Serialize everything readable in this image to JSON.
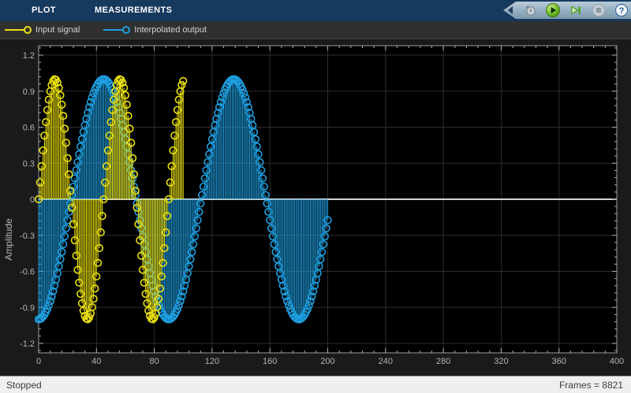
{
  "tabs": [
    {
      "label": "PLOT"
    },
    {
      "label": "MEASUREMENTS"
    }
  ],
  "toolbar": {
    "buttons": [
      "stepping-options",
      "run",
      "step-forward",
      "stop",
      "help"
    ]
  },
  "legend": [
    {
      "label": "Input signal",
      "color": "#ebe10f"
    },
    {
      "label": "Interpolated output",
      "color": "#1e9fe0"
    }
  ],
  "status_bar": {
    "left": "Stopped",
    "right": "Frames = 8821"
  },
  "chart_data": {
    "type": "stem",
    "title": "",
    "xlabel": "",
    "ylabel": "Amplitude",
    "xlim": [
      0,
      400
    ],
    "ylim": [
      -1.28,
      1.28
    ],
    "x_ticks": [
      0,
      40,
      80,
      120,
      160,
      200,
      240,
      280,
      320,
      360,
      400
    ],
    "y_ticks": [
      1.2,
      0.9,
      0.6,
      0.3,
      0,
      -0.3,
      -0.6,
      -0.9,
      -1.2
    ],
    "x_minor_step": 8,
    "y_minor_step": 0.06,
    "grid": true,
    "legend_position": "top-left-bar",
    "background_color": "#000000",
    "grid_color": "#2e2e2e",
    "axis_color": "#9c9c9c",
    "tick_label_color": "#b5b5b5",
    "zero_line_color": "#f2f2f2",
    "series": [
      {
        "name": "Interpolated output",
        "color": "#1e9fe0",
        "marker": "circle",
        "waveform": "-cos",
        "amplitude": 1.0,
        "period": 90,
        "phase": 0,
        "x_start": 0,
        "x_end": 200,
        "x_step": 1,
        "description": "y = -cos(2*pi*x/90), stems with open circle markers, samples 0..200"
      },
      {
        "name": "Input signal",
        "color": "#ebe10f",
        "marker": "circle",
        "waveform": "sin",
        "amplitude": 1.0,
        "period": 45,
        "phase": 0,
        "x_start": 0,
        "x_end": 100,
        "x_step": 1,
        "description": "y = sin(2*pi*x/45), stems with open circle markers, samples 0..100"
      }
    ]
  }
}
